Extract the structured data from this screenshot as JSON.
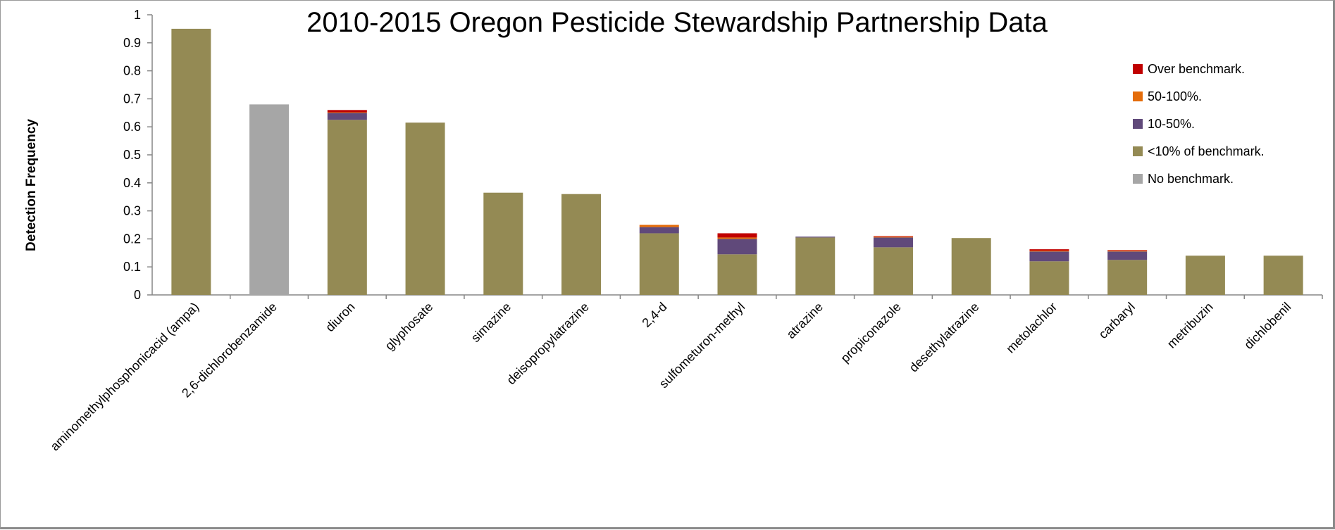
{
  "chart_data": {
    "type": "bar",
    "stacked": true,
    "title": "2010-2015 Oregon Pesticide Stewardship Partnership Data",
    "xlabel": "",
    "ylabel": "Detection Frequency",
    "ylim": [
      0,
      1
    ],
    "yticks": [
      "0",
      "0.1",
      "0.2",
      "0.3",
      "0.4",
      "0.5",
      "0.6",
      "0.7",
      "0.8",
      "0.9",
      "1"
    ],
    "grid": false,
    "legend_position": "top-right",
    "categories": [
      "aminomethylphosphonicacid (ampa)",
      "2,6-dichlorobenzamide",
      "diuron",
      "glyphosate",
      "simazine",
      "deisopropylatrazine",
      "2,4-d",
      "sulfometuron-methyl",
      "atrazine",
      "propiconazole",
      "desethylatrazine",
      "metolachlor",
      "carbaryl",
      "metribuzin",
      "dichlobenil"
    ],
    "series": [
      {
        "name": "No benchmark.",
        "color": "#a6a6a6",
        "values": [
          0,
          0.68,
          0,
          0,
          0,
          0,
          0,
          0,
          0,
          0,
          0,
          0,
          0,
          0,
          0
        ]
      },
      {
        "name": "<10% of benchmark.",
        "color": "#948a54",
        "values": [
          0.95,
          0,
          0.625,
          0.615,
          0.365,
          0.36,
          0.22,
          0.145,
          0.205,
          0.17,
          0.203,
          0.12,
          0.125,
          0.14,
          0.14
        ]
      },
      {
        "name": "10-50%.",
        "color": "#60497a",
        "values": [
          0,
          0,
          0.025,
          0,
          0,
          0,
          0.022,
          0.055,
          0.003,
          0.035,
          0,
          0.035,
          0.03,
          0,
          0
        ]
      },
      {
        "name": "50-100%.",
        "color": "#e46c0a",
        "values": [
          0,
          0,
          0.002,
          0,
          0,
          0,
          0.008,
          0.005,
          0,
          0.003,
          0,
          0.003,
          0.003,
          0,
          0
        ]
      },
      {
        "name": "Over benchmark.",
        "color": "#c00000",
        "values": [
          0,
          0,
          0.008,
          0,
          0,
          0,
          0,
          0.015,
          0,
          0.002,
          0,
          0.005,
          0.002,
          0,
          0
        ]
      }
    ],
    "legend_order": [
      "Over benchmark.",
      "50-100%.",
      "10-50%.",
      "<10% of benchmark.",
      "No benchmark."
    ]
  }
}
